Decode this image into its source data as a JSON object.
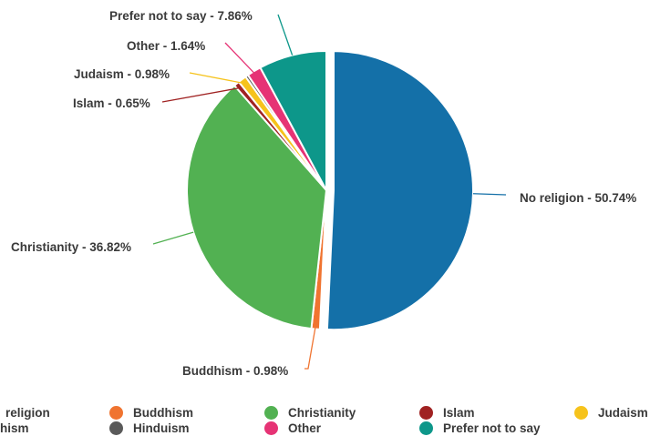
{
  "chart_data": {
    "type": "pie",
    "slices": [
      {
        "name": "No religion",
        "value": 50.74,
        "label": "No religion - 50.74%",
        "color": "#1470a8"
      },
      {
        "name": "Buddhism",
        "value": 0.98,
        "label": "Buddhism - 0.98%",
        "color": "#f07430"
      },
      {
        "name": "Christianity",
        "value": 36.82,
        "label": "Christianity - 36.82%",
        "color": "#52b152"
      },
      {
        "name": "Islam",
        "value": 0.65,
        "label": "Islam - 0.65%",
        "color": "#a02222"
      },
      {
        "name": "Judaism",
        "value": 0.98,
        "label": "Judaism - 0.98%",
        "color": "#f6c31c"
      },
      {
        "name": "Hinduism",
        "value": 0.33,
        "label": "",
        "color": "#5a5a5a"
      },
      {
        "name": "Other",
        "value": 1.64,
        "label": "Other - 1.64%",
        "color": "#e63375"
      },
      {
        "name": "Prefer not to say",
        "value": 7.86,
        "label": "Prefer not to say - 7.86%",
        "color": "#0d978a"
      }
    ],
    "exploded": "No religion",
    "legend": {
      "position": "bottom",
      "entries": [
        "No religion",
        "Buddhism",
        "Christianity",
        "Islam",
        "Judaism",
        "Hinduism",
        "Other",
        "Prefer not to say"
      ],
      "visible_text": [
        "religion",
        "Buddhism",
        "Christianity",
        "Islam",
        "Judaism",
        "hism",
        "Hinduism",
        "Other",
        "Prefer not to say"
      ]
    }
  }
}
